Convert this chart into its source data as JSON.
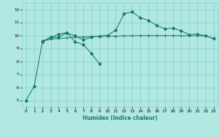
{
  "title": "",
  "xlabel": "Humidex (Indice chaleur)",
  "bg_color": "#b2e8e2",
  "grid_color": "#7ecfc8",
  "line_color": "#1a7a6e",
  "xlim": [
    -0.5,
    23.5
  ],
  "ylim": [
    4.5,
    12.5
  ],
  "yticks": [
    5,
    6,
    7,
    8,
    9,
    10,
    11,
    12
  ],
  "xticks": [
    0,
    1,
    2,
    3,
    4,
    5,
    6,
    7,
    8,
    9,
    10,
    11,
    12,
    13,
    14,
    15,
    16,
    17,
    18,
    19,
    20,
    21,
    22,
    23
  ],
  "line1_x": [
    0,
    1,
    2,
    3,
    4,
    5,
    6,
    7,
    8,
    9
  ],
  "line1_y": [
    5.0,
    6.1,
    9.5,
    9.85,
    9.85,
    10.2,
    9.5,
    9.3,
    8.6,
    7.8
  ],
  "line2_x": [
    2,
    3,
    4,
    5,
    6,
    7,
    8,
    9,
    10,
    11,
    12,
    13,
    14,
    15,
    16,
    17,
    18,
    19,
    20,
    21,
    22,
    23
  ],
  "line2_y": [
    9.55,
    9.7,
    9.75,
    9.8,
    9.85,
    9.87,
    9.9,
    9.92,
    9.93,
    9.94,
    9.95,
    9.96,
    9.97,
    9.97,
    9.97,
    9.97,
    9.97,
    9.96,
    9.96,
    9.95,
    9.95,
    9.75
  ],
  "line3_x": [
    2,
    3,
    4,
    5,
    6,
    7,
    8,
    9,
    10,
    11,
    12,
    13,
    14,
    15,
    16,
    17,
    18,
    19,
    20,
    21,
    22,
    23
  ],
  "line3_y": [
    9.55,
    9.8,
    10.1,
    10.2,
    9.95,
    9.65,
    9.85,
    9.93,
    10.0,
    10.4,
    11.65,
    11.8,
    11.35,
    11.15,
    10.75,
    10.5,
    10.55,
    10.35,
    10.05,
    10.1,
    9.95,
    9.75
  ]
}
